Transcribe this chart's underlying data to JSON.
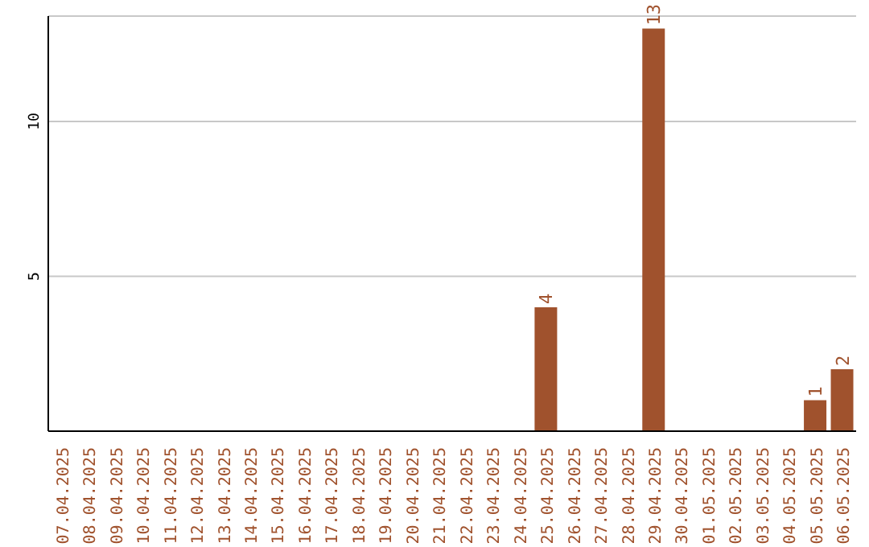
{
  "chart_data": {
    "type": "bar",
    "categories": [
      "07.04.2025",
      "08.04.2025",
      "09.04.2025",
      "10.04.2025",
      "11.04.2025",
      "12.04.2025",
      "13.04.2025",
      "14.04.2025",
      "15.04.2025",
      "16.04.2025",
      "17.04.2025",
      "18.04.2025",
      "19.04.2025",
      "20.04.2025",
      "21.04.2025",
      "22.04.2025",
      "23.04.2025",
      "24.04.2025",
      "25.04.2025",
      "26.04.2025",
      "27.04.2025",
      "28.04.2025",
      "29.04.2025",
      "30.04.2025",
      "01.05.2025",
      "02.05.2025",
      "03.05.2025",
      "04.05.2025",
      "05.05.2025",
      "06.05.2025"
    ],
    "values": [
      0,
      0,
      0,
      0,
      0,
      0,
      0,
      0,
      0,
      0,
      0,
      0,
      0,
      0,
      0,
      0,
      0,
      0,
      4,
      0,
      0,
      0,
      13,
      0,
      0,
      0,
      0,
      0,
      1,
      2
    ],
    "value_labels": [
      null,
      null,
      null,
      null,
      null,
      null,
      null,
      null,
      null,
      null,
      null,
      null,
      null,
      null,
      null,
      null,
      null,
      null,
      "4",
      null,
      null,
      null,
      "13",
      null,
      null,
      null,
      null,
      null,
      "1",
      "2"
    ],
    "color": "#a0522d",
    "ylim": [
      0,
      13.4
    ],
    "yticks": [
      5,
      10
    ],
    "grid": "y"
  }
}
